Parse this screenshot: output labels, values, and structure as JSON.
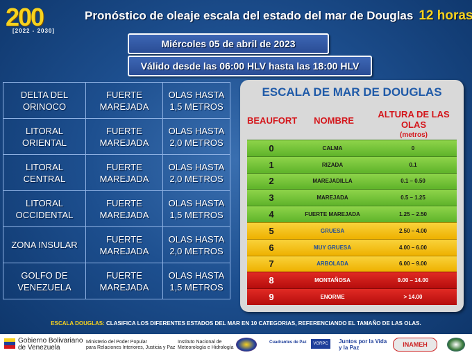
{
  "header": {
    "logo_number": "200",
    "logo_years": "[2022 - 2030]",
    "title": "Pronóstico de oleaje escala del estado del mar de Douglas",
    "hours": "12 horas",
    "date": "Miércoles 05 de abril de 2023",
    "valid": "Válido desde las 06:00 HLV hasta las 18:00 HLV"
  },
  "forecast": [
    {
      "zone": "DELTA DEL ORINOCO",
      "condition": "FUERTE MAREJADA",
      "waves": "OLAS HASTA 1,5 METROS"
    },
    {
      "zone": "LITORAL ORIENTAL",
      "condition": "FUERTE MAREJADA",
      "waves": "OLAS HASTA 2,0 METROS"
    },
    {
      "zone": "LITORAL CENTRAL",
      "condition": "FUERTE MAREJADA",
      "waves": "OLAS HASTA 2,0 METROS"
    },
    {
      "zone": "LITORAL OCCIDENTAL",
      "condition": "FUERTE MAREJADA",
      "waves": "OLAS HASTA 1,5 METROS"
    },
    {
      "zone": "ZONA INSULAR",
      "condition": "FUERTE MAREJADA",
      "waves": "OLAS HASTA 2,0 METROS"
    },
    {
      "zone": "GOLFO DE VENEZUELA",
      "condition": "FUERTE MAREJADA",
      "waves": "OLAS HASTA 1,5 METROS"
    }
  ],
  "scale": {
    "title": "ESCALA DE MAR DE DOUGLAS",
    "col_beaufort": "BEAUFORT",
    "col_name": "NOMBRE",
    "col_height": "ALTURA DE LAS OLAS",
    "col_height_unit": "(metros)",
    "colors": {
      "green": "#6cbf34",
      "yellow": "#f2bf12",
      "red": "#c8171a"
    },
    "rows": [
      {
        "b": "0",
        "name": "CALMA",
        "height": "0",
        "color": "green"
      },
      {
        "b": "1",
        "name": "RIZADA",
        "height": "0.1",
        "color": "green"
      },
      {
        "b": "2",
        "name": "MAREJADILLA",
        "height": "0.1 – 0.50",
        "color": "green"
      },
      {
        "b": "3",
        "name": "MAREJADA",
        "height": "0.5 – 1.25",
        "color": "green"
      },
      {
        "b": "4",
        "name": "FUERTE MAREJADA",
        "height": "1.25 – 2.50",
        "color": "green"
      },
      {
        "b": "5",
        "name": "GRUESA",
        "height": "2.50 – 4.00",
        "color": "yellow"
      },
      {
        "b": "6",
        "name": "MUY GRUESA",
        "height": "4.00 – 6.00",
        "color": "yellow"
      },
      {
        "b": "7",
        "name": "ARBOLADA",
        "height": "6.00 – 9.00",
        "color": "yellow"
      },
      {
        "b": "8",
        "name": "MONTAÑOSA",
        "height": "9.00 – 14.00",
        "color": "red"
      },
      {
        "b": "9",
        "name": "ENORME",
        "height": "> 14.00",
        "color": "red"
      }
    ]
  },
  "note": {
    "label": "ESCALA DOUGLAS:",
    "text": "CLASIFICA LOS DIFERENTES ESTADOS DEL MAR EN 10 CATEGORIAS, REFERENCIANDO EL TAMAÑO DE LAS OLAS."
  },
  "footer": {
    "gov_line1": "Gobierno Bolivariano",
    "gov_line2": "de Venezuela",
    "ministry_line1": "Ministerio del Poder Popular",
    "ministry_line2": "para Relaciones Interiores, Justicia y Paz",
    "inst_line1": "Instituto Nacional de",
    "inst_line2": "Meteorología e Hidrología",
    "vgrpc": "VGRPC",
    "juntos": "Juntos por la Vida y la Paz",
    "inameh": "INAMEH",
    "cuadrantes": "Cuadrantes de Paz"
  }
}
